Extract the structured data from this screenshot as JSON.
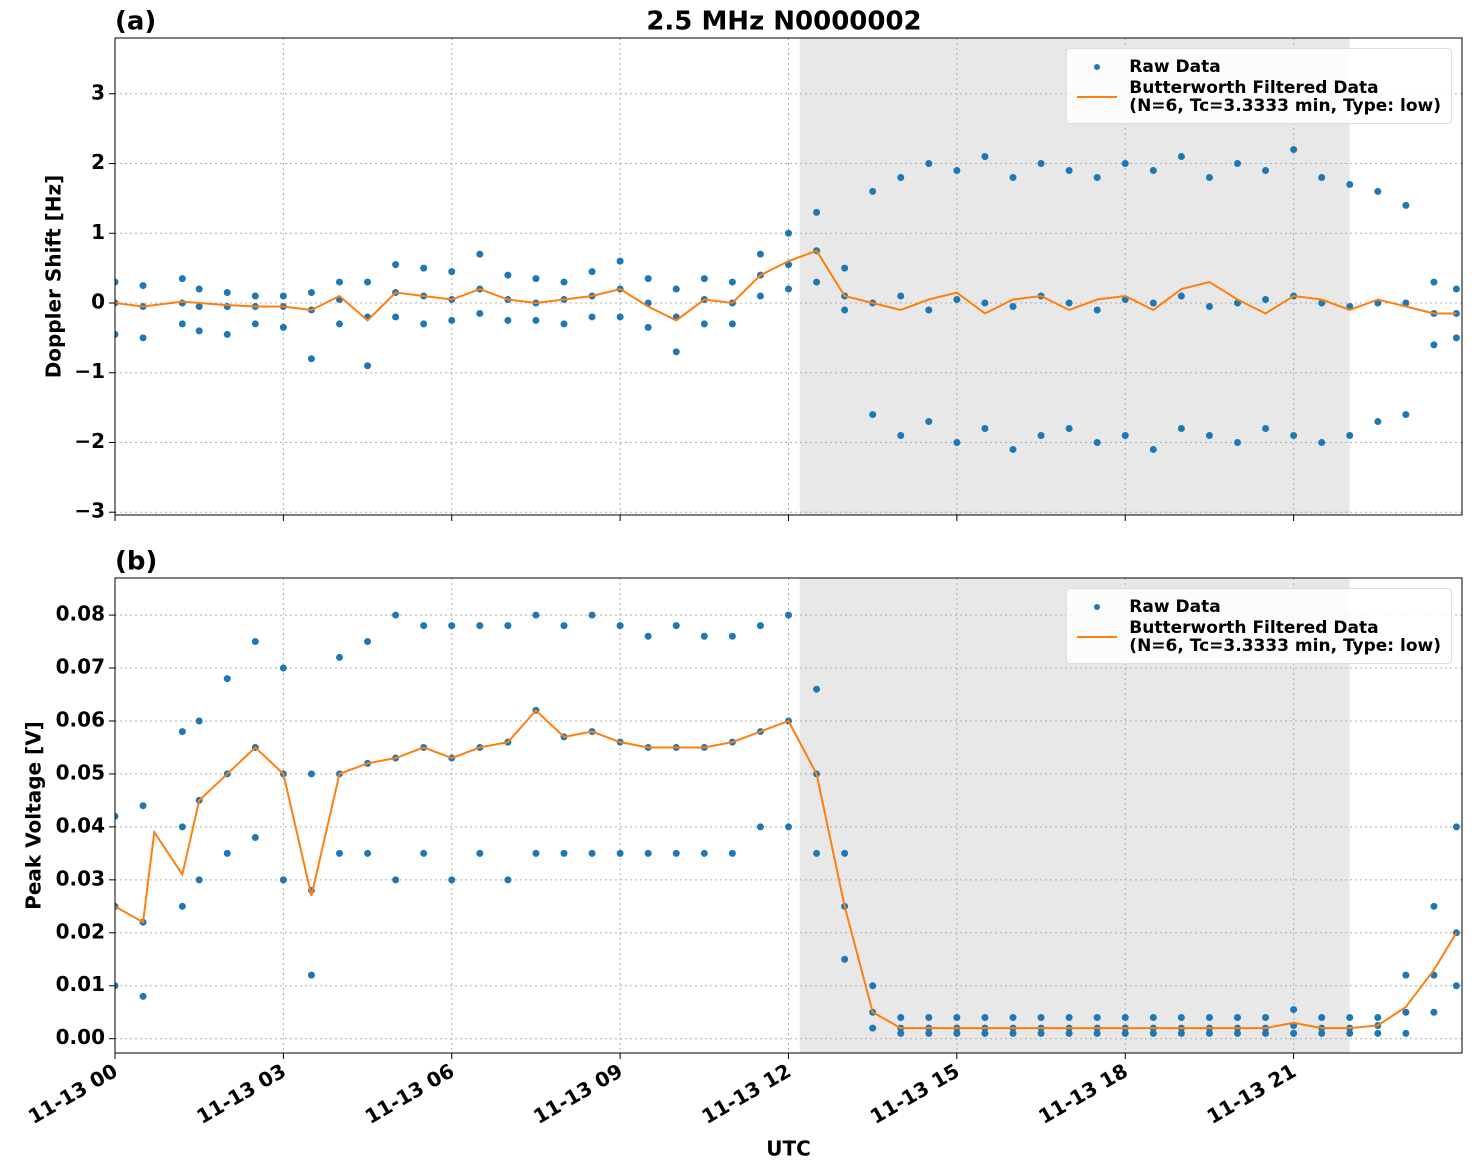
{
  "chart_data": [
    {
      "type": "scatter",
      "title": "2.5 MHz N0000002",
      "panel_label": "(a)",
      "ylabel": "Doppler Shift [Hz]",
      "xlim": [
        0,
        24
      ],
      "xticks": [
        0,
        3,
        6,
        9,
        12,
        15,
        18,
        21
      ],
      "ylim": [
        -3.04,
        3.8
      ],
      "yticks": [
        {
          "value": -3,
          "label": "−3"
        },
        {
          "value": -2,
          "label": "−2"
        },
        {
          "value": -1,
          "label": "−1"
        },
        0,
        1,
        2,
        3
      ],
      "grid": true,
      "legend": "upper right",
      "shade": [
        12.2,
        22.0
      ],
      "shade_color": "#e8e8e8",
      "series": [
        {
          "name": "Raw Data",
          "color": "#1f77b4",
          "kind": "points",
          "x": [
            0,
            0,
            0,
            0.5,
            0.5,
            0.5,
            1.2,
            1.2,
            1.2,
            1.5,
            1.5,
            1.5,
            2,
            2,
            2,
            2.5,
            2.5,
            2.5,
            3,
            3,
            3,
            3.5,
            3.5,
            3.5,
            4,
            4,
            4,
            4.5,
            4.5,
            4.5,
            5,
            5,
            5,
            5.5,
            5.5,
            5.5,
            6,
            6,
            6,
            6.5,
            6.5,
            6.5,
            7,
            7,
            7,
            7.5,
            7.5,
            7.5,
            8,
            8,
            8,
            8.5,
            8.5,
            8.5,
            9,
            9,
            9,
            9.5,
            9.5,
            9.5,
            10,
            10,
            10,
            10.5,
            10.5,
            10.5,
            11,
            11,
            11,
            11.5,
            11.5,
            11.5,
            12,
            12,
            12,
            12.5,
            12.5,
            12.5,
            13,
            13,
            13,
            13.5,
            13.5,
            13.5,
            14,
            14,
            14,
            14.5,
            14.5,
            14.5,
            15,
            15,
            15,
            15.5,
            15.5,
            15.5,
            16,
            16,
            16,
            16.5,
            16.5,
            16.5,
            17,
            17,
            17,
            17.5,
            17.5,
            17.5,
            18,
            18,
            18,
            18.5,
            18.5,
            18.5,
            19,
            19,
            19,
            19.5,
            19.5,
            19.5,
            20,
            20,
            20,
            20.5,
            20.5,
            20.5,
            21,
            21,
            21,
            21.5,
            21.5,
            21.5,
            22,
            22,
            22,
            22.5,
            22.5,
            22.5,
            23,
            23,
            23,
            23.5,
            23.5,
            23.5,
            23.9,
            23.9,
            23.9
          ],
          "values": [
            0.3,
            -0.45,
            0,
            0.25,
            -0.5,
            -0.05,
            0.35,
            -0.3,
            0,
            0.2,
            -0.4,
            -0.05,
            0.15,
            -0.45,
            -0.05,
            0.1,
            -0.3,
            -0.05,
            0.1,
            -0.35,
            -0.05,
            0.15,
            -0.8,
            -0.1,
            0.3,
            -0.3,
            0.05,
            0.3,
            -0.9,
            -0.2,
            0.55,
            -0.2,
            0.15,
            0.5,
            -0.3,
            0.1,
            0.45,
            -0.25,
            0.05,
            0.7,
            -0.15,
            0.2,
            0.4,
            -0.25,
            0.05,
            0.35,
            -0.25,
            0,
            0.3,
            -0.3,
            0.05,
            0.45,
            -0.2,
            0.1,
            0.6,
            -0.2,
            0.2,
            0.35,
            -0.35,
            0,
            0.2,
            -0.7,
            -0.2,
            0.35,
            -0.3,
            0.05,
            0.3,
            -0.3,
            0,
            0.7,
            0.1,
            0.4,
            1.0,
            0.2,
            0.55,
            1.3,
            0.3,
            0.75,
            0.5,
            -0.1,
            0.1,
            1.6,
            -1.6,
            0,
            1.8,
            -1.9,
            0.1,
            2.0,
            -1.7,
            -0.1,
            1.9,
            -2.0,
            0.05,
            2.1,
            -1.8,
            0,
            1.8,
            -2.1,
            -0.05,
            2.0,
            -1.9,
            0.1,
            1.9,
            -1.8,
            0,
            1.8,
            -2.0,
            -0.1,
            2.0,
            -1.9,
            0.05,
            1.9,
            -2.1,
            0,
            2.1,
            -1.8,
            0.1,
            1.8,
            -1.9,
            -0.05,
            2.0,
            -2.0,
            0,
            1.9,
            -1.8,
            0.05,
            2.2,
            -1.9,
            0.1,
            1.8,
            -2.0,
            0,
            1.7,
            -1.9,
            -0.05,
            1.6,
            -1.7,
            0,
            1.4,
            -1.6,
            0,
            0.3,
            -0.6,
            -0.15,
            0.2,
            -0.5,
            -0.15
          ]
        },
        {
          "name": "Butterworth Filtered Data\n(N=6, Tc=3.3333 min, Type: low)",
          "color": "#ff7f0e",
          "kind": "line",
          "x": [
            0,
            0.5,
            1.2,
            1.5,
            2,
            2.5,
            3,
            3.5,
            4,
            4.5,
            5,
            5.5,
            6,
            6.5,
            7,
            7.5,
            8,
            8.5,
            9,
            9.5,
            10,
            10.5,
            11,
            11.5,
            12,
            12.5,
            13,
            13.5,
            14,
            14.5,
            15,
            15.5,
            16,
            16.5,
            17,
            17.5,
            18,
            18.5,
            19,
            19.5,
            20,
            20.5,
            21,
            21.5,
            22,
            22.5,
            23,
            23.5,
            23.9
          ],
          "values": [
            0,
            -0.05,
            0.02,
            0,
            -0.03,
            -0.05,
            -0.05,
            -0.1,
            0.1,
            -0.25,
            0.15,
            0.1,
            0.05,
            0.2,
            0.05,
            0,
            0.05,
            0.1,
            0.2,
            -0.05,
            -0.25,
            0.05,
            0,
            0.4,
            0.6,
            0.75,
            0.1,
            0,
            -0.1,
            0.05,
            0.15,
            -0.15,
            0.05,
            0.1,
            -0.1,
            0.05,
            0.1,
            -0.1,
            0.2,
            0.3,
            0.05,
            -0.15,
            0.1,
            0.05,
            -0.1,
            0.05,
            -0.05,
            -0.15,
            -0.15
          ]
        }
      ]
    },
    {
      "type": "scatter",
      "panel_label": "(b)",
      "ylabel": "Peak Voltage [V]",
      "xlabel": "UTC",
      "xlim": [
        0,
        24
      ],
      "xticks": [
        {
          "value": 0,
          "label": "11-13 00"
        },
        {
          "value": 3,
          "label": "11-13 03"
        },
        {
          "value": 6,
          "label": "11-13 06"
        },
        {
          "value": 9,
          "label": "11-13 09"
        },
        {
          "value": 12,
          "label": "11-13 12"
        },
        {
          "value": 15,
          "label": "11-13 15"
        },
        {
          "value": 18,
          "label": "11-13 18"
        },
        {
          "value": 21,
          "label": "11-13 21"
        }
      ],
      "ylim": [
        -0.0027,
        0.087
      ],
      "yticks": [
        {
          "value": 0,
          "label": "0.00"
        },
        0.01,
        0.02,
        0.03,
        0.04,
        0.05,
        0.06,
        0.07,
        0.08
      ],
      "grid": true,
      "legend": "upper right",
      "shade": [
        12.2,
        22.0
      ],
      "shade_color": "#e8e8e8",
      "series": [
        {
          "name": "Raw Data",
          "color": "#1f77b4",
          "kind": "points",
          "x": [
            0,
            0,
            0,
            0.5,
            0.5,
            0.5,
            1.2,
            1.2,
            1.2,
            1.5,
            1.5,
            1.5,
            2,
            2,
            2,
            2.5,
            2.5,
            2.5,
            3,
            3,
            3,
            3.5,
            3.5,
            3.5,
            4,
            4,
            4,
            4.5,
            4.5,
            4.5,
            5,
            5,
            5,
            5.5,
            5.5,
            5.5,
            6,
            6,
            6,
            6.5,
            6.5,
            6.5,
            7,
            7,
            7,
            7.5,
            7.5,
            7.5,
            8,
            8,
            8,
            8.5,
            8.5,
            8.5,
            9,
            9,
            9,
            9.5,
            9.5,
            9.5,
            10,
            10,
            10,
            10.5,
            10.5,
            10.5,
            11,
            11,
            11,
            11.5,
            11.5,
            11.5,
            12,
            12,
            12,
            12.5,
            12.5,
            12.5,
            13,
            13,
            13,
            13.5,
            13.5,
            13.5,
            14,
            14,
            14,
            14.5,
            14.5,
            14.5,
            15,
            15,
            15,
            15.5,
            15.5,
            15.5,
            16,
            16,
            16,
            16.5,
            16.5,
            16.5,
            17,
            17,
            17,
            17.5,
            17.5,
            17.5,
            18,
            18,
            18,
            18.5,
            18.5,
            18.5,
            19,
            19,
            19,
            19.5,
            19.5,
            19.5,
            20,
            20,
            20,
            20.5,
            20.5,
            20.5,
            21,
            21,
            21,
            21.5,
            21.5,
            21.5,
            22,
            22,
            22,
            22.5,
            22.5,
            22.5,
            23,
            23,
            23,
            23.5,
            23.5,
            23.5,
            23.9,
            23.9,
            23.9
          ],
          "values": [
            0.042,
            0.01,
            0.025,
            0.044,
            0.008,
            0.022,
            0.058,
            0.025,
            0.04,
            0.06,
            0.03,
            0.045,
            0.068,
            0.035,
            0.05,
            0.075,
            0.038,
            0.055,
            0.07,
            0.03,
            0.05,
            0.05,
            0.012,
            0.028,
            0.072,
            0.035,
            0.05,
            0.075,
            0.035,
            0.052,
            0.08,
            0.03,
            0.053,
            0.078,
            0.035,
            0.055,
            0.078,
            0.03,
            0.053,
            0.078,
            0.035,
            0.055,
            0.078,
            0.03,
            0.056,
            0.08,
            0.035,
            0.062,
            0.078,
            0.035,
            0.057,
            0.08,
            0.035,
            0.058,
            0.078,
            0.035,
            0.056,
            0.076,
            0.035,
            0.055,
            0.078,
            0.035,
            0.055,
            0.076,
            0.035,
            0.055,
            0.076,
            0.035,
            0.056,
            0.078,
            0.04,
            0.058,
            0.08,
            0.04,
            0.06,
            0.066,
            0.035,
            0.05,
            0.035,
            0.015,
            0.025,
            0.01,
            0.002,
            0.005,
            0.004,
            0.001,
            0.002,
            0.004,
            0.001,
            0.002,
            0.004,
            0.001,
            0.002,
            0.004,
            0.001,
            0.002,
            0.004,
            0.001,
            0.002,
            0.004,
            0.001,
            0.002,
            0.004,
            0.001,
            0.002,
            0.004,
            0.001,
            0.002,
            0.004,
            0.001,
            0.002,
            0.004,
            0.001,
            0.002,
            0.004,
            0.001,
            0.002,
            0.004,
            0.001,
            0.002,
            0.004,
            0.001,
            0.002,
            0.004,
            0.001,
            0.002,
            0.0055,
            0.001,
            0.0025,
            0.004,
            0.001,
            0.002,
            0.004,
            0.001,
            0.002,
            0.004,
            0.001,
            0.0025,
            0.012,
            0.001,
            0.005,
            0.025,
            0.005,
            0.012,
            0.04,
            0.01,
            0.02
          ]
        },
        {
          "name": "Butterworth Filtered Data\n(N=6, Tc=3.3333 min, Type: low)",
          "color": "#ff7f0e",
          "kind": "line",
          "x": [
            0,
            0.5,
            0.7,
            1.2,
            1.5,
            2,
            2.5,
            3,
            3.5,
            4,
            4.5,
            5,
            5.5,
            6,
            6.5,
            7,
            7.5,
            8,
            8.5,
            9,
            9.5,
            10,
            10.5,
            11,
            11.5,
            12,
            12.5,
            13,
            13.5,
            14,
            14.5,
            15,
            15.5,
            16,
            16.5,
            17,
            17.5,
            18,
            18.5,
            19,
            19.5,
            20,
            20.5,
            21,
            21.5,
            22,
            22.5,
            23,
            23.5,
            23.9
          ],
          "values": [
            0.025,
            0.022,
            0.039,
            0.031,
            0.045,
            0.05,
            0.055,
            0.05,
            0.027,
            0.05,
            0.052,
            0.053,
            0.055,
            0.053,
            0.055,
            0.056,
            0.062,
            0.057,
            0.058,
            0.056,
            0.055,
            0.055,
            0.055,
            0.056,
            0.058,
            0.06,
            0.05,
            0.025,
            0.005,
            0.002,
            0.002,
            0.002,
            0.002,
            0.002,
            0.002,
            0.002,
            0.002,
            0.002,
            0.002,
            0.002,
            0.002,
            0.002,
            0.002,
            0.003,
            0.002,
            0.002,
            0.0025,
            0.006,
            0.013,
            0.02
          ]
        }
      ]
    }
  ]
}
